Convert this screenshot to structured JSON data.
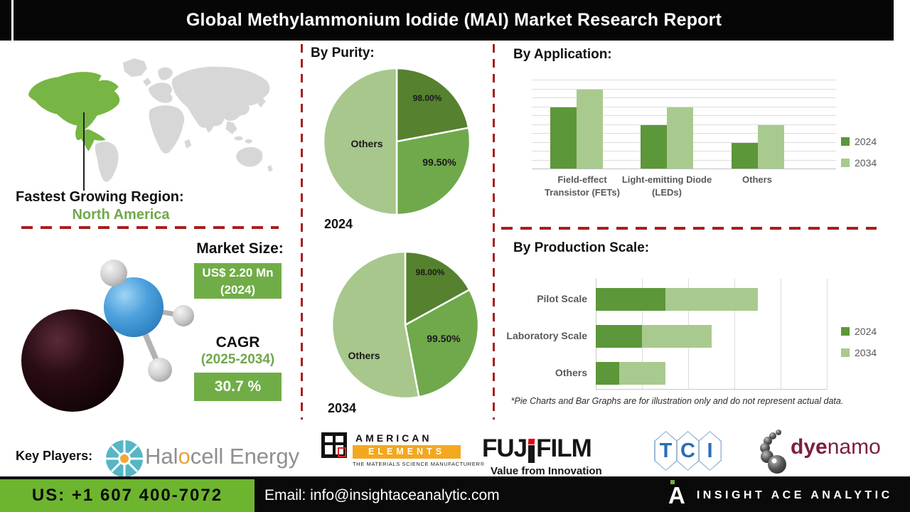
{
  "header": {
    "title": "Global Methylammonium Iodide (MAI) Market Research Report"
  },
  "colors": {
    "pie_dark": "#56812f",
    "pie_mid": "#6fa94b",
    "pie_light": "#a7c78c",
    "series_2024": "#5c9739",
    "series_2034": "#a9ca8e",
    "map_green": "#77b544",
    "map_gray": "#d7d7d7",
    "red_dash": "#a81e1e",
    "accent_green_box": "#70ad47",
    "bottom_green": "#6db52e"
  },
  "map_section": {
    "caption": "Fastest Growing Region:",
    "region": "North America"
  },
  "market_size": {
    "heading": "Market Size:",
    "value_line1": "US$ 2.20 Mn",
    "value_line2": "(2024)",
    "cagr_label": "CAGR",
    "cagr_period": "(2025-2034)",
    "cagr_value": "30.7 %"
  },
  "footnote": "*Pie Charts and Bar Graphs are for illustration only and do not represent actual data.",
  "key_players": {
    "label": "Key Players:",
    "halocell": {
      "pre": "Hal",
      "accent": "o",
      "post": "cell Energy"
    },
    "american_elements": {
      "line1": "AMERICAN",
      "line2": "ELEMENTS",
      "line3": "THE MATERIALS SCIENCE MANUFACTURER®"
    },
    "fujifilm": {
      "left": "FUJ",
      "right": "FILM",
      "tagline": "Value from Innovation"
    },
    "tci": {
      "letters": [
        "T",
        "C",
        "I"
      ]
    },
    "dyenamo": {
      "bold": "dye",
      "rest": "namo"
    }
  },
  "contact": {
    "phone": "US: +1 607 400-7072",
    "email": "Email: info@insightaceanalytic.com",
    "brand_mark": "A",
    "brand_text": "INSIGHT ACE ANALYTIC"
  },
  "chart_data": [
    {
      "id": "purity_2024",
      "type": "pie",
      "title": "By Purity:",
      "year": "2024",
      "slices": [
        {
          "label": "98.00%",
          "value": 22,
          "color_key": "pie_dark"
        },
        {
          "label": "99.50%",
          "value": 28,
          "color_key": "pie_mid"
        },
        {
          "label": "Others",
          "value": 50,
          "color_key": "pie_light"
        }
      ]
    },
    {
      "id": "purity_2034",
      "type": "pie",
      "title": "By Purity:",
      "year": "2034",
      "slices": [
        {
          "label": "98.00%",
          "value": 17,
          "color_key": "pie_dark"
        },
        {
          "label": "99.50%",
          "value": 30,
          "color_key": "pie_mid"
        },
        {
          "label": "Others",
          "value": 53,
          "color_key": "pie_light"
        }
      ]
    },
    {
      "id": "application",
      "type": "bar",
      "title": "By Application:",
      "categories": [
        "Field-effect Transistor (FETs)",
        "Light-emitting Diode (LEDs)",
        "Others"
      ],
      "category_lines": [
        [
          "Field-effect",
          "Transistor (FETs)"
        ],
        [
          "Light-emitting Diode",
          "(LEDs)"
        ],
        [
          "Others"
        ]
      ],
      "series": [
        {
          "name": "2024",
          "values": [
            69,
            49,
            29
          ],
          "color_key": "series_2024"
        },
        {
          "name": "2034",
          "values": [
            89,
            69,
            49
          ],
          "color_key": "series_2034"
        }
      ],
      "ylim": [
        0,
        100
      ],
      "grid": true,
      "legend_position": "right"
    },
    {
      "id": "production",
      "type": "hbar_stacked",
      "title": "By Production Scale:",
      "categories": [
        "Pilot Scale",
        "Laboratory Scale",
        "Others"
      ],
      "series": [
        {
          "name": "2024",
          "values": [
            1.5,
            1.0,
            0.5
          ],
          "color_key": "series_2024"
        },
        {
          "name": "2034",
          "values": [
            2.0,
            1.5,
            1.0
          ],
          "color_key": "series_2034"
        }
      ],
      "xlim": [
        0,
        5
      ],
      "grid": true,
      "legend_position": "right"
    }
  ]
}
